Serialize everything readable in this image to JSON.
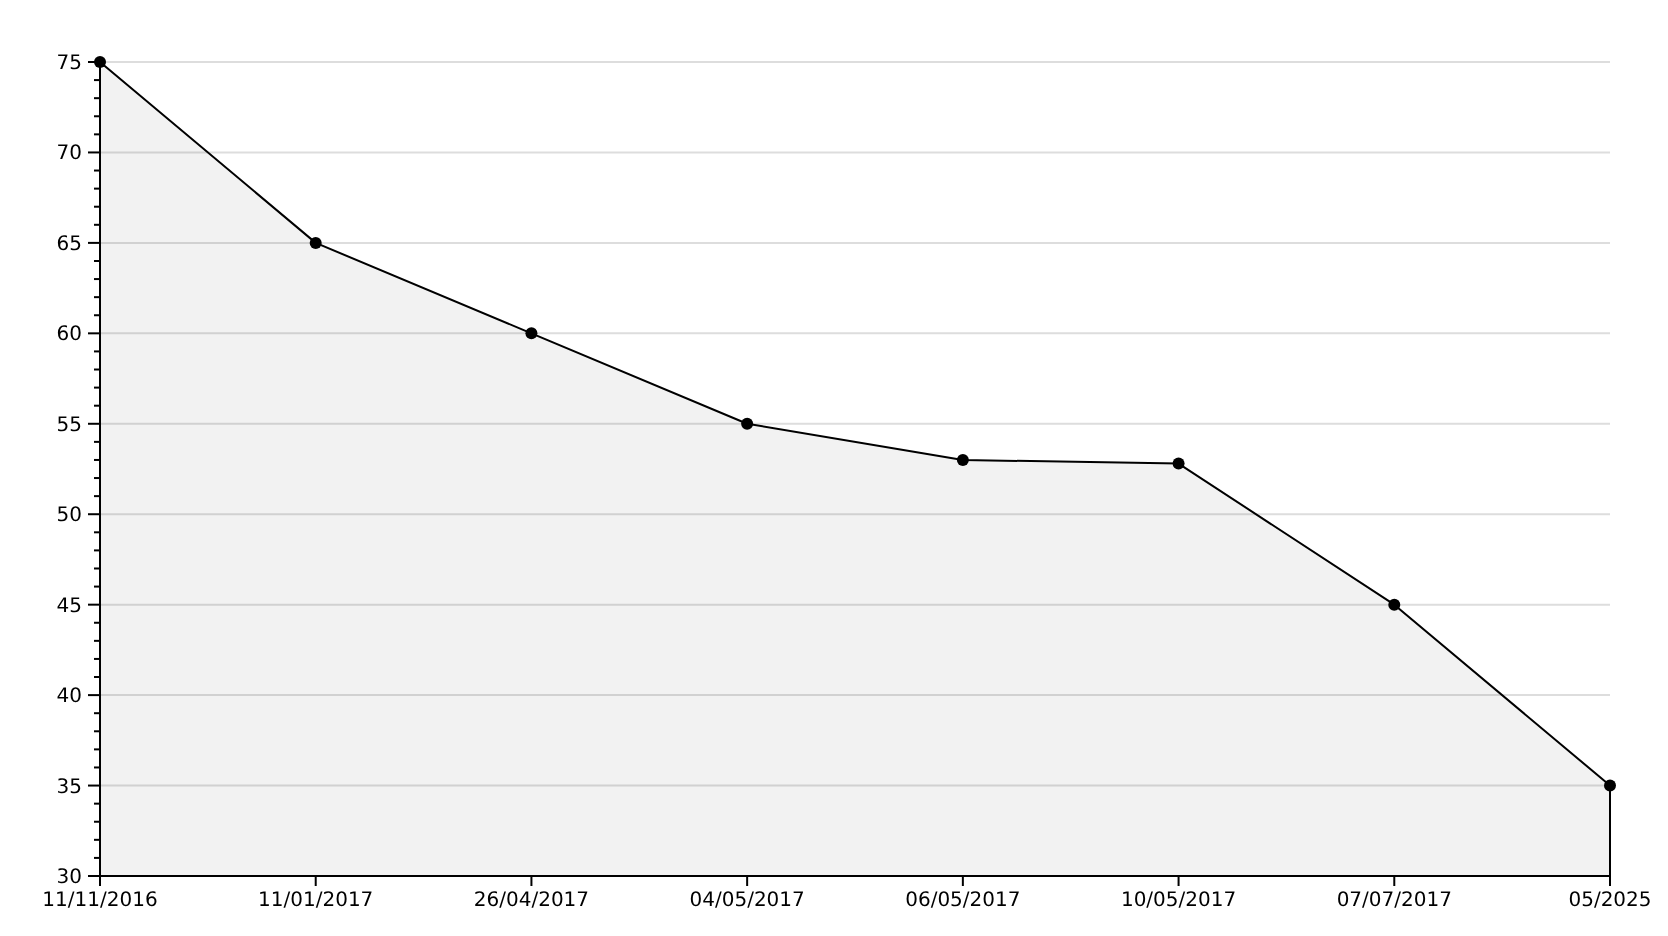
{
  "chart_data": {
    "type": "area",
    "categories": [
      "11/11/2016",
      "11/01/2017",
      "26/04/2017",
      "04/05/2017",
      "06/05/2017",
      "10/05/2017",
      "07/07/2017",
      "05/2025"
    ],
    "series": [
      {
        "color": "#000000",
        "values": [
          75,
          65,
          60,
          55,
          53,
          52.8,
          45,
          35
        ]
      }
    ],
    "ylim": [
      30,
      75
    ],
    "yticks": [
      30,
      {
        "value": 31,
        "label": null
      },
      {
        "value": 32,
        "label": null
      },
      {
        "value": 33,
        "label": null
      },
      {
        "value": 34,
        "label": null
      },
      35,
      {
        "value": 36,
        "label": null
      },
      {
        "value": 37,
        "label": null
      },
      {
        "value": 38,
        "label": null
      },
      {
        "value": 39,
        "label": null
      },
      40,
      {
        "value": 41,
        "label": null
      },
      {
        "value": 42,
        "label": null
      },
      {
        "value": 43,
        "label": null
      },
      {
        "value": 44,
        "label": null
      },
      45,
      {
        "value": 46,
        "label": null
      },
      {
        "value": 47,
        "label": null
      },
      {
        "value": 48,
        "label": null
      },
      {
        "value": 49,
        "label": null
      },
      50,
      {
        "value": 51,
        "label": null
      },
      {
        "value": 52,
        "label": null
      },
      {
        "value": 53,
        "label": null
      },
      {
        "value": 54,
        "label": null
      },
      55,
      {
        "value": 56,
        "label": null
      },
      {
        "value": 57,
        "label": null
      },
      {
        "value": 58,
        "label": null
      },
      {
        "value": 59,
        "label": null
      },
      60,
      {
        "value": 61,
        "label": null
      },
      {
        "value": 62,
        "label": null
      },
      {
        "value": 63,
        "label": null
      },
      {
        "value": 64,
        "label": null
      },
      65,
      {
        "value": 66,
        "label": null
      },
      {
        "value": 67,
        "label": null
      },
      {
        "value": 68,
        "label": null
      },
      {
        "value": 69,
        "label": null
      },
      70,
      {
        "value": 71,
        "label": null
      },
      {
        "value": 72,
        "label": null
      },
      {
        "value": 73,
        "label": null
      },
      {
        "value": 74,
        "label": null
      },
      75
    ],
    "grid": "y",
    "marker": "circle"
  }
}
